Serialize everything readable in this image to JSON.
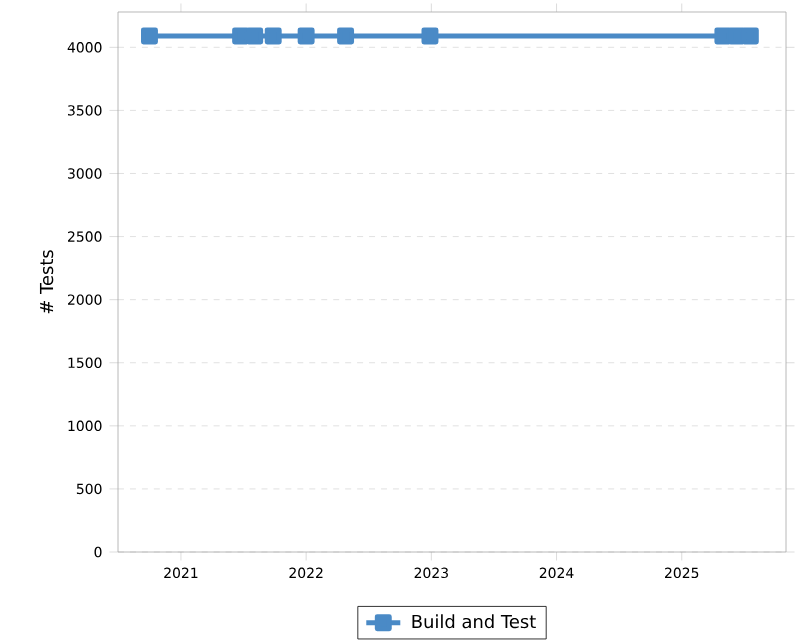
{
  "chart_data": {
    "type": "line",
    "ylabel": "# Tests",
    "x": [
      "2020-10-01",
      "2021-06-24",
      "2021-08-04",
      "2021-09-27",
      "2022-01-01",
      "2022-04-26",
      "2022-12-28",
      "2025-05-01",
      "2025-06-10",
      "2025-07-20"
    ],
    "series": [
      {
        "name": "Build and Test",
        "color": "#4a8ac6",
        "values": [
          4090,
          4090,
          4090,
          4090,
          4090,
          4090,
          4090,
          4090,
          4090,
          4090
        ]
      }
    ],
    "xlim": [
      "2020-07-01",
      "2025-11-01"
    ],
    "xticks": [
      {
        "value": "2021-01-01",
        "label": "2021"
      },
      {
        "value": "2022-01-01",
        "label": "2022"
      },
      {
        "value": "2023-01-01",
        "label": "2023"
      },
      {
        "value": "2024-01-01",
        "label": "2024"
      },
      {
        "value": "2025-01-01",
        "label": "2025"
      }
    ],
    "ylim": [
      0,
      4280
    ],
    "yticks": [
      0,
      500,
      1000,
      1500,
      2000,
      2500,
      3000,
      3500,
      4000
    ],
    "grid": "y",
    "legend": "bottom",
    "marker": "square",
    "line_style": "solid"
  }
}
